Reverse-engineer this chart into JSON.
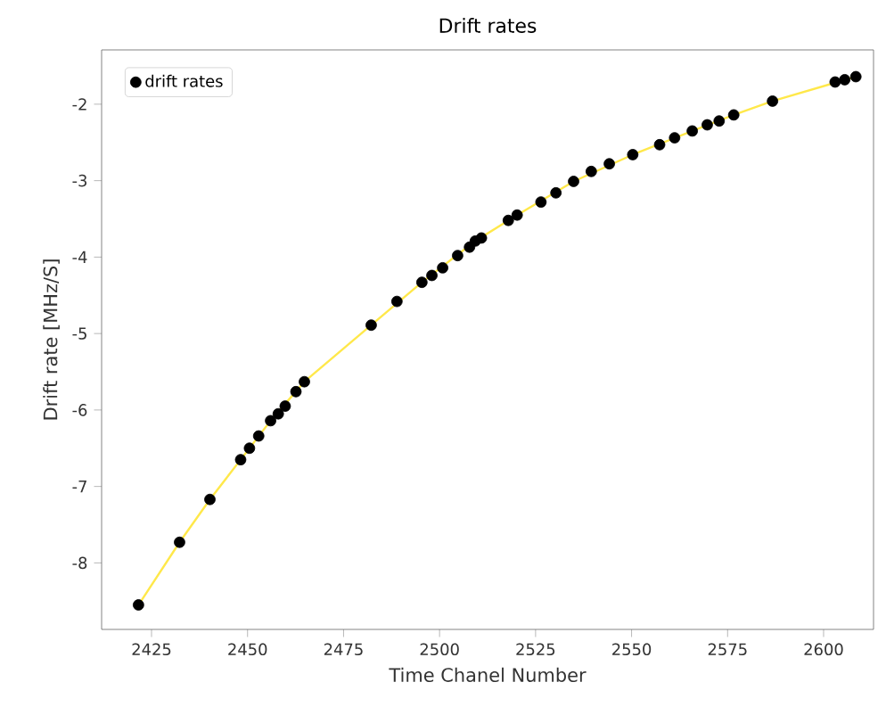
{
  "chart_data": {
    "type": "scatter",
    "title": "Drift rates",
    "xlabel": "Time Chanel Number",
    "ylabel": "Drift rate [MHz/S]",
    "xlim": [
      2412,
      2613
    ],
    "ylim": [
      -8.87,
      -1.29
    ],
    "xticks": [
      2425,
      2450,
      2475,
      2500,
      2525,
      2550,
      2575,
      2600
    ],
    "yticks": [
      -8,
      -7,
      -6,
      -5,
      -4,
      -3,
      -2
    ],
    "legend": "top left",
    "grid": false,
    "series": [
      {
        "type": "line",
        "color": "#ffe84a",
        "line_style": "solid",
        "x": [
          2421.6,
          2432.3,
          2440.2,
          2448.2,
          2456,
          2464.8,
          2482.2,
          2495.4,
          2509.3,
          2520.2,
          2534.9,
          2550.3,
          2565.8,
          2576.6,
          2586.7,
          2608.4
        ],
        "values": [
          -8.55,
          -7.73,
          -7.17,
          -6.65,
          -6.14,
          -5.63,
          -4.89,
          -4.33,
          -3.79,
          -3.45,
          -3.01,
          -2.66,
          -2.35,
          -2.14,
          -1.96,
          -1.64
        ]
      },
      {
        "name": "drift rates",
        "color": "#000000",
        "x": [
          2421.6,
          2432.3,
          2440.2,
          2448.2,
          2450.5,
          2452.9,
          2456,
          2458,
          2459.8,
          2462.6,
          2464.8,
          2482.2,
          2488.9,
          2495.4,
          2498,
          2500.8,
          2504.7,
          2507.8,
          2509.3,
          2510.9,
          2517.9,
          2520.2,
          2526.4,
          2530.3,
          2534.9,
          2539.5,
          2544.2,
          2550.3,
          2557.3,
          2561.2,
          2565.8,
          2569.7,
          2572.8,
          2576.6,
          2586.7,
          2603,
          2605.5,
          2608.4
        ],
        "values": [
          -8.55,
          -7.73,
          -7.17,
          -6.65,
          -6.5,
          -6.34,
          -6.14,
          -6.05,
          -5.95,
          -5.76,
          -5.63,
          -4.89,
          -4.58,
          -4.33,
          -4.24,
          -4.14,
          -3.98,
          -3.87,
          -3.79,
          -3.75,
          -3.52,
          -3.45,
          -3.28,
          -3.16,
          -3.01,
          -2.88,
          -2.78,
          -2.66,
          -2.53,
          -2.44,
          -2.35,
          -2.27,
          -2.22,
          -2.14,
          -1.96,
          -1.71,
          -1.68,
          -1.64
        ]
      }
    ]
  }
}
